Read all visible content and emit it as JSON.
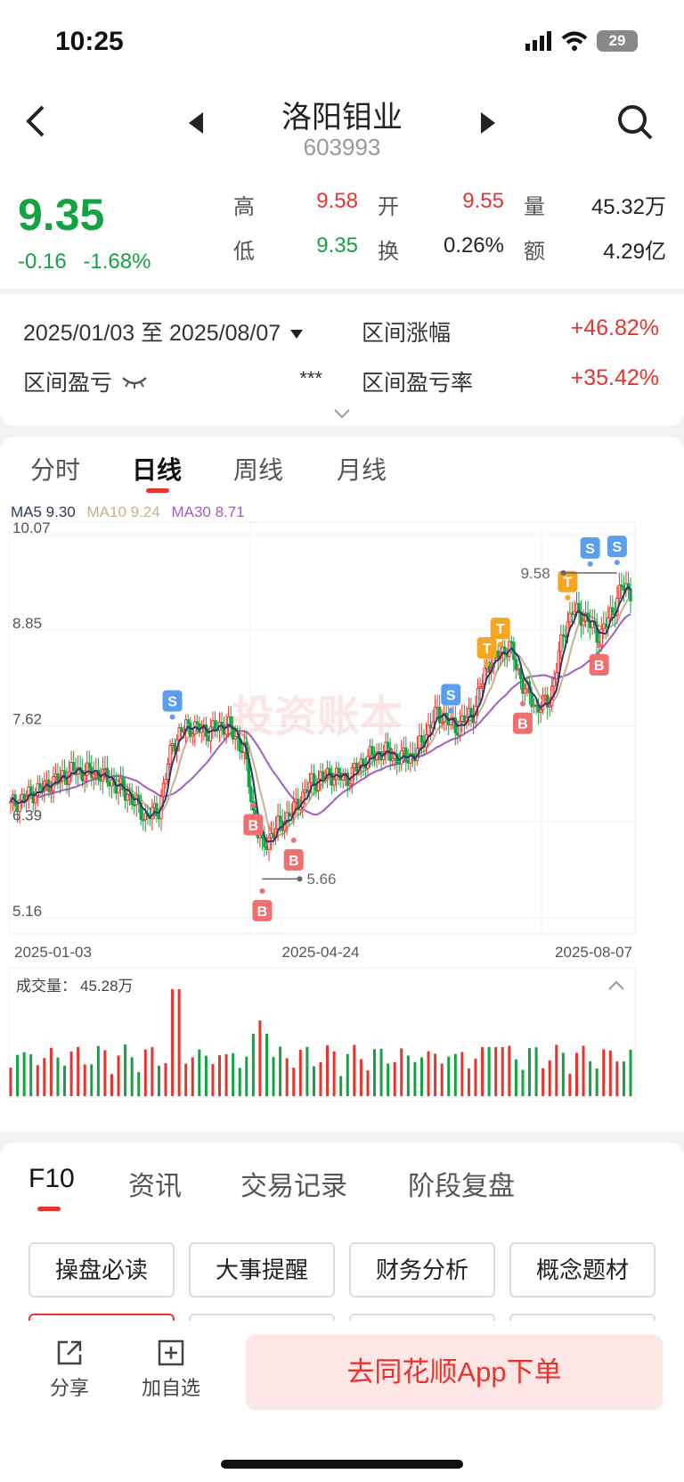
{
  "status_bar": {
    "time": "10:25",
    "battery": "29"
  },
  "header": {
    "name": "洛阳钼业",
    "code": "603993"
  },
  "quote": {
    "price": "9.35",
    "change": "-0.16",
    "change_pct": "-1.68%",
    "labels": {
      "high": "高",
      "open": "开",
      "volume": "量",
      "low": "低",
      "turnover": "换",
      "amount": "额"
    },
    "high": "9.58",
    "open": "9.55",
    "volume": "45.32万",
    "low": "9.35",
    "turnover_rate": "0.26%",
    "amount": "4.29亿"
  },
  "range": {
    "dates": "2025/01/03 至 2025/08/07",
    "rise_label": "区间涨幅",
    "rise_value": "+46.82%",
    "pl_label": "区间盈亏",
    "pl_value": "***",
    "pl_rate_label": "区间盈亏率",
    "pl_rate_value": "+35.42%"
  },
  "chart_tabs": [
    "分时",
    "日线",
    "周线",
    "月线"
  ],
  "active_chart_tab": "日线",
  "chart_legend": {
    "ma5": "MA5 9.30",
    "ma10": "MA10 9.24",
    "ma30": "MA30 8.71"
  },
  "watermark": "投资账本",
  "chart_data": {
    "type": "candlestick",
    "y_ticks": [
      "10.07",
      "8.85",
      "7.62",
      "6.39",
      "5.16"
    ],
    "ylim": [
      5.16,
      10.07
    ],
    "x_ticks": [
      "2025-01-03",
      "2025-04-24",
      "2025-08-07"
    ],
    "high_annotation": "9.58",
    "low_annotation": "5.66",
    "volume_label": "成交量：",
    "volume_value": "45.28万",
    "markers": [
      "S",
      "S",
      "S",
      "S",
      "T",
      "T",
      "T",
      "B",
      "B",
      "B",
      "B",
      "B"
    ],
    "colors": {
      "up": "#e8342f",
      "down": "#14a342",
      "ma5": "#2b3a67",
      "ma10": "#c9b08c",
      "ma30": "#a05cc8",
      "buy": "#f07070",
      "sell": "#5b9ef0",
      "t": "#f5a623"
    }
  },
  "f10_tabs": [
    "F10",
    "资讯",
    "交易记录",
    "阶段复盘"
  ],
  "f10_buttons": [
    "操盘必读",
    "大事提醒",
    "财务分析",
    "概念题材"
  ],
  "bottom": {
    "share": "分享",
    "add_watch": "加自选",
    "cta": "去同花顺App下单"
  }
}
